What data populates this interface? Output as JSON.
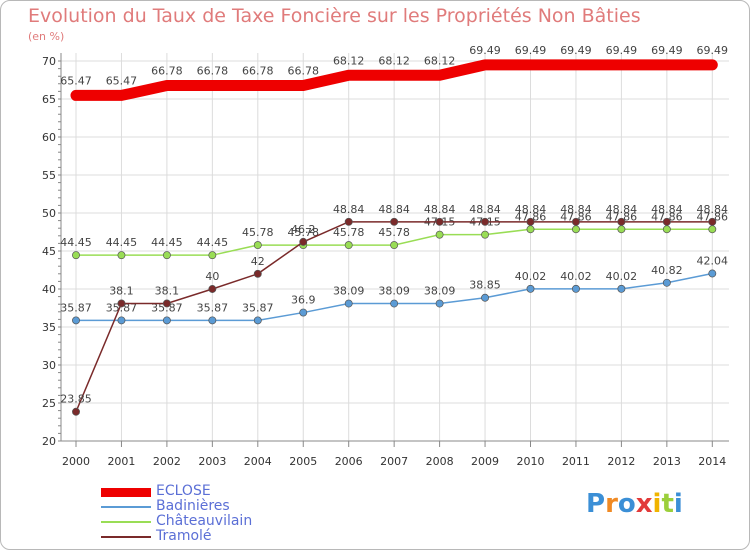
{
  "chart_data": {
    "type": "line",
    "title": "Evolution du Taux de Taxe Foncière sur les Propriétés Non Bâties",
    "ylabel": "(en %)",
    "xlabel": "",
    "x": [
      "2000",
      "2001",
      "2002",
      "2003",
      "2004",
      "2005",
      "2006",
      "2007",
      "2008",
      "2009",
      "2010",
      "2011",
      "2012",
      "2013",
      "2014"
    ],
    "ylim": [
      20,
      70
    ],
    "yticks": [
      "20",
      "25",
      "30",
      "35",
      "40",
      "45",
      "50",
      "55",
      "60",
      "65",
      "70"
    ],
    "grid": true,
    "legend_position": "bottom-left",
    "series": [
      {
        "name": "ECLOSE",
        "color": "#ee0000",
        "values": [
          65.47,
          65.47,
          66.78,
          66.78,
          66.78,
          66.78,
          68.12,
          68.12,
          68.12,
          69.49,
          69.49,
          69.49,
          69.49,
          69.49,
          69.49
        ],
        "labels": [
          "65.47",
          "65.47",
          "66.78",
          "66.78",
          "66.78",
          "66.78",
          "68.12",
          "68.12",
          "68.12",
          "69.49",
          "69.49",
          "69.49",
          "69.49",
          "69.49",
          "69.49"
        ]
      },
      {
        "name": "Badinières",
        "color": "#5b9bd5",
        "values": [
          35.87,
          35.87,
          35.87,
          35.87,
          35.87,
          36.9,
          38.09,
          38.09,
          38.09,
          38.85,
          40.02,
          40.02,
          40.02,
          40.82,
          42.04
        ],
        "labels": [
          "35.87",
          "35.87",
          "35.87",
          "35.87",
          "35.87",
          "36.9",
          "38.09",
          "38.09",
          "38.09",
          "38.85",
          "40.02",
          "40.02",
          "40.02",
          "40.82",
          "42.04"
        ]
      },
      {
        "name": "Châteauvilain",
        "color": "#99dd55",
        "values": [
          44.45,
          44.45,
          44.45,
          44.45,
          45.78,
          45.78,
          45.78,
          45.78,
          47.15,
          47.15,
          47.86,
          47.86,
          47.86,
          47.86,
          47.86
        ],
        "labels": [
          "44.45",
          "44.45",
          "44.45",
          "44.45",
          "45.78",
          "45.78",
          "45.78",
          "45.78",
          "47.15",
          "47.15",
          "47.86",
          "47.86",
          "47.86",
          "47.86",
          "47.86"
        ]
      },
      {
        "name": "Tramolé",
        "color": "#7a2a2a",
        "values": [
          23.85,
          38.1,
          38.1,
          40,
          42,
          46.2,
          48.84,
          48.84,
          48.84,
          48.84,
          48.84,
          48.84,
          48.84,
          48.84,
          48.84
        ],
        "labels": [
          "23.85",
          "38.1",
          "38.1",
          "40",
          "42",
          "46.2",
          "48.84",
          "48.84",
          "48.84",
          "48.84",
          "48.84",
          "48.84",
          "48.84",
          "48.84",
          "48.84"
        ]
      }
    ]
  },
  "brand": {
    "letters": [
      "P",
      "r",
      "o",
      "x",
      "i",
      "t",
      "i"
    ],
    "colors": [
      "#3b8fd6",
      "#f08a24",
      "#3b8fd6",
      "#e23a3a",
      "#f0b400",
      "#9bcf3b",
      "#3b8fd6"
    ]
  }
}
